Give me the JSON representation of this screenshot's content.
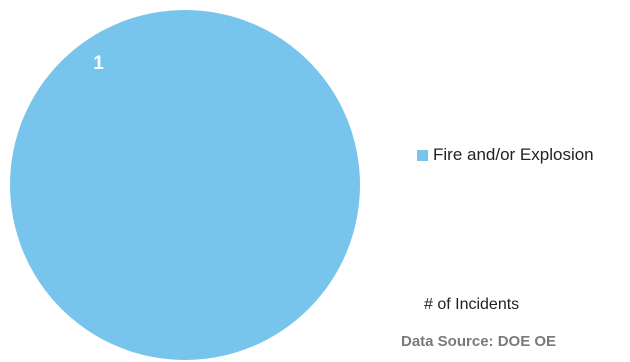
{
  "chart_data": {
    "type": "pie",
    "categories": [
      "Fire and/or Explosion"
    ],
    "values": [
      1
    ],
    "data_labels": [
      "1"
    ],
    "colors": [
      "#77c4ec"
    ],
    "legend_placement": "right",
    "title": "",
    "subtitle": ""
  },
  "labels": {
    "incidents": "# of Incidents",
    "source": "Data Source: DOE OE"
  }
}
